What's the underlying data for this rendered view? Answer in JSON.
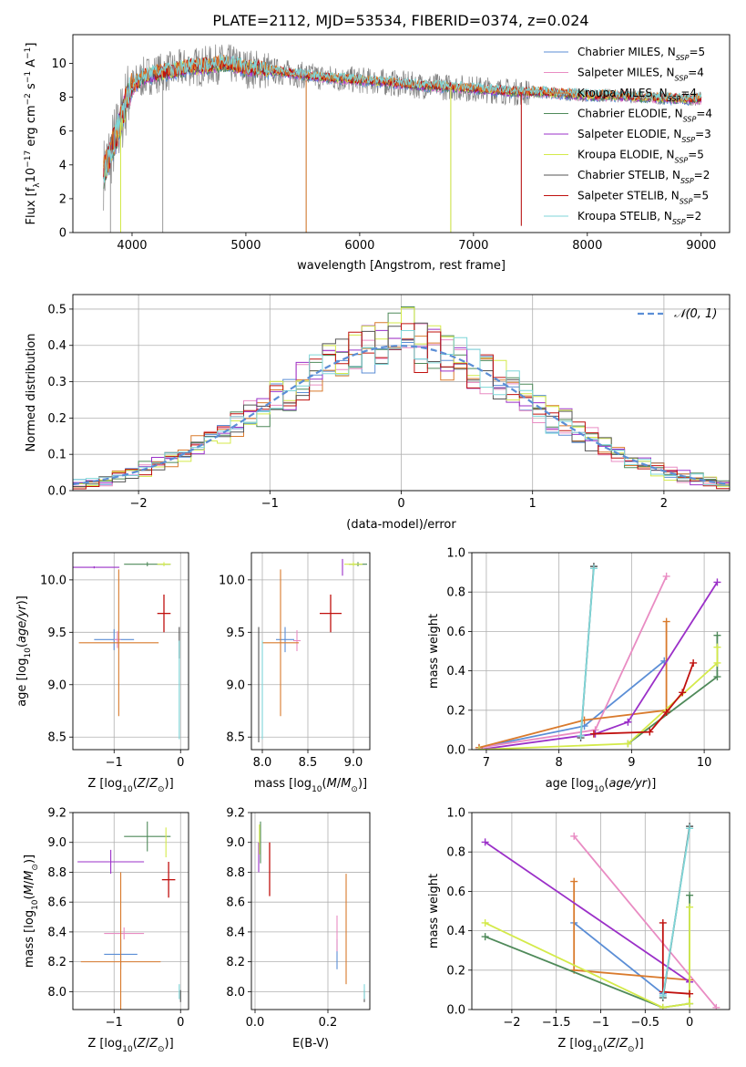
{
  "figure": {
    "title": "PLATE=2112, MJD=53534, FIBERID=0374, z=0.024"
  },
  "model_colors": {
    "Chabrier MILES": "#5b8ed6",
    "Salpeter MILES": "#e98cc3",
    "Kroupa MILES": "#d97a2c",
    "Chabrier ELODIE": "#4f8a5a",
    "Salpeter ELODIE": "#9b30c8",
    "Kroupa ELODIE": "#d4ea4a",
    "Chabrier STELIB": "#555555",
    "Salpeter STELIB": "#c0100e",
    "Kroupa STELIB": "#7fd6d8",
    "data": "#808080"
  },
  "chart_data": [
    {
      "id": "spectrum",
      "type": "line",
      "xlabel": "wavelength [Angstrom, rest frame]",
      "ylabel": "Flux [f_λ 10^-17 erg cm^-2 s^-1 A^-1]",
      "xlim": [
        3480,
        9250
      ],
      "ylim": [
        0,
        11.7
      ],
      "xticks": [
        4000,
        5000,
        6000,
        7000,
        8000,
        9000
      ],
      "yticks": [
        0,
        2,
        4,
        6,
        8,
        10
      ],
      "grid": false,
      "legend_position": "top-right",
      "legend": [
        {
          "name": "Chabrier MILES",
          "nssp": "5"
        },
        {
          "name": "Salpeter MILES",
          "nssp": "4"
        },
        {
          "name": "Kroupa MILES",
          "nssp": "4"
        },
        {
          "name": "Chabrier ELODIE",
          "nssp": "4"
        },
        {
          "name": "Salpeter ELODIE",
          "nssp": "3"
        },
        {
          "name": "Kroupa ELODIE",
          "nssp": "5"
        },
        {
          "name": "Chabrier STELIB",
          "nssp": "2"
        },
        {
          "name": "Salpeter STELIB",
          "nssp": "5"
        },
        {
          "name": "Kroupa STELIB",
          "nssp": "2"
        }
      ],
      "continuum": {
        "x": [
          3750,
          3800,
          3850,
          3900,
          3950,
          4000,
          4100,
          4200,
          4300,
          4400,
          4500,
          4600,
          4700,
          4800,
          4900,
          5000,
          5200,
          5500,
          5800,
          6000,
          6200,
          6500,
          6800,
          7000,
          7200,
          7400,
          7600,
          7800,
          8000,
          8200,
          8500,
          8800,
          9000
        ],
        "y": [
          3.5,
          4.5,
          5.5,
          6.5,
          7.8,
          8.6,
          9.2,
          9.4,
          9.5,
          9.6,
          9.8,
          9.8,
          9.9,
          10.0,
          9.9,
          9.7,
          9.6,
          9.3,
          9.1,
          9.0,
          8.9,
          8.7,
          8.6,
          8.5,
          8.4,
          8.3,
          8.3,
          8.2,
          8.1,
          8.1,
          8.0,
          7.9,
          7.9
        ]
      },
      "data_spikes": [
        {
          "x": 3810,
          "y": 0.0
        },
        {
          "x": 4270,
          "y": 0.0
        },
        {
          "x": 5530,
          "y": 0.0
        },
        {
          "x": 6800,
          "y": 0.0
        },
        {
          "x": 7420,
          "y": 0.4
        },
        {
          "x": 3900,
          "y": 0.0
        }
      ]
    },
    {
      "id": "residuals",
      "type": "histogram",
      "xlabel": "(data-model)/error",
      "ylabel": "Normed distribution",
      "xlim": [
        -2.5,
        2.5
      ],
      "ylim": [
        0,
        0.54
      ],
      "xticks": [
        -2,
        -1,
        0,
        1,
        2
      ],
      "yticks": [
        0.0,
        0.1,
        0.2,
        0.3,
        0.4,
        0.5
      ],
      "grid": true,
      "legend_position": "top-right",
      "legend": [
        "𝒩(0, 1)"
      ],
      "bin_width": 0.1
    },
    {
      "id": "age-vs-Z",
      "type": "errorbar",
      "xlabel": "Z [log10(Z/Z⊙)]",
      "ylabel": "age  [log10(age/yr)]",
      "xlim": [
        -1.62,
        0.12
      ],
      "ylim": [
        8.38,
        10.26
      ],
      "xticks": [
        -1,
        0
      ],
      "yticks": [
        8.5,
        9.0,
        9.5,
        10.0
      ],
      "grid": true,
      "points": [
        {
          "model": "Chabrier MILES",
          "x": -1.0,
          "xerr": 0.3,
          "y": 9.43,
          "yerr": 0.1
        },
        {
          "model": "Salpeter MILES",
          "x": -0.95,
          "xerr": 0.05,
          "y": 9.43,
          "yerr": 0.08
        },
        {
          "model": "Kroupa MILES",
          "x": -0.93,
          "xerr": 0.6,
          "y": 9.4,
          "yerr": 0.7
        },
        {
          "model": "Chabrier ELODIE",
          "x": -0.5,
          "xerr": 0.35,
          "y": 10.15,
          "yerr": 0.02
        },
        {
          "model": "Salpeter ELODIE",
          "x": -1.3,
          "xerr": 0.38,
          "y": 10.12,
          "yerr": 0.01
        },
        {
          "model": "Kroupa ELODIE",
          "x": -0.25,
          "xerr": 0.1,
          "y": 10.15,
          "yerr": 0.02
        },
        {
          "model": "Chabrier STELIB",
          "x": -0.02,
          "xerr": 0.0,
          "y": 9.4,
          "yerr": 0.15
        },
        {
          "model": "Salpeter STELIB",
          "x": -0.25,
          "xerr": 0.1,
          "y": 9.68,
          "yerr": 0.18
        },
        {
          "model": "Kroupa STELIB",
          "x": -0.02,
          "xerr": 0.0,
          "y": 8.95,
          "yerr": 0.47
        }
      ]
    },
    {
      "id": "age-vs-mass",
      "type": "errorbar",
      "xlabel": "mass [log10(M/M⊙)]",
      "ylabel": "",
      "xlim": [
        7.88,
        9.18
      ],
      "ylim": [
        8.38,
        10.26
      ],
      "xticks": [
        8.0,
        8.5,
        9.0
      ],
      "yticks": [
        8.5,
        9.0,
        9.5,
        10.0
      ],
      "grid": true,
      "points": [
        {
          "model": "Chabrier MILES",
          "x": 8.25,
          "xerr": 0.1,
          "y": 9.43,
          "yerr": 0.12
        },
        {
          "model": "Salpeter MILES",
          "x": 8.38,
          "xerr": 0.04,
          "y": 9.42,
          "yerr": 0.1
        },
        {
          "model": "Kroupa MILES",
          "x": 8.2,
          "xerr": 0.2,
          "y": 9.4,
          "yerr": 0.7
        },
        {
          "model": "Chabrier ELODIE",
          "x": 9.05,
          "xerr": 0.1,
          "y": 10.15,
          "yerr": 0.02
        },
        {
          "model": "Salpeter ELODIE",
          "x": 8.88,
          "xerr": 0.0,
          "y": 10.12,
          "yerr": 0.08
        },
        {
          "model": "Kroupa ELODIE",
          "x": 9.0,
          "xerr": 0.1,
          "y": 10.15,
          "yerr": 0.02
        },
        {
          "model": "Chabrier STELIB",
          "x": 7.96,
          "xerr": 0.0,
          "y": 9.0,
          "yerr": 0.55
        },
        {
          "model": "Salpeter STELIB",
          "x": 8.75,
          "xerr": 0.12,
          "y": 9.68,
          "yerr": 0.18
        },
        {
          "model": "Kroupa STELIB",
          "x": 8.0,
          "xerr": 0.0,
          "y": 8.95,
          "yerr": 0.47
        }
      ]
    },
    {
      "id": "massweight-vs-age",
      "type": "line",
      "xlabel": "age  [log10(age/yr)]",
      "ylabel": "mass weight",
      "xlim": [
        6.8,
        10.35
      ],
      "ylim": [
        0,
        1.0
      ],
      "xticks": [
        7,
        8,
        9,
        10
      ],
      "yticks": [
        0.0,
        0.2,
        0.4,
        0.6,
        0.8,
        1.0
      ],
      "grid": true,
      "series": [
        {
          "model": "Chabrier MILES",
          "x": [
            6.9,
            8.35,
            9.45
          ],
          "y": [
            0.01,
            0.12,
            0.45
          ]
        },
        {
          "model": "Salpeter MILES",
          "x": [
            6.9,
            8.5,
            9.48
          ],
          "y": [
            0.01,
            0.1,
            0.88
          ]
        },
        {
          "model": "Kroupa MILES",
          "x": [
            6.9,
            8.35,
            9.48,
            9.48
          ],
          "y": [
            0.01,
            0.15,
            0.2,
            0.65
          ]
        },
        {
          "model": "Chabrier ELODIE",
          "x": [
            8.95,
            10.18,
            10.18
          ],
          "y": [
            0.03,
            0.37,
            0.58
          ]
        },
        {
          "model": "Salpeter ELODIE",
          "x": [
            6.9,
            8.5,
            8.95,
            10.18
          ],
          "y": [
            0.0,
            0.08,
            0.14,
            0.85
          ]
        },
        {
          "model": "Kroupa ELODIE",
          "x": [
            6.9,
            8.95,
            10.18,
            10.18
          ],
          "y": [
            0.0,
            0.03,
            0.44,
            0.52
          ]
        },
        {
          "model": "Chabrier STELIB",
          "x": [
            8.3,
            8.48
          ],
          "y": [
            0.06,
            0.93
          ]
        },
        {
          "model": "Salpeter STELIB",
          "x": [
            8.48,
            9.25,
            9.48,
            9.7,
            9.85
          ],
          "y": [
            0.08,
            0.09,
            0.19,
            0.29,
            0.44
          ]
        },
        {
          "model": "Kroupa STELIB",
          "x": [
            8.3,
            8.48
          ],
          "y": [
            0.07,
            0.92
          ]
        }
      ]
    },
    {
      "id": "mass-vs-Z",
      "type": "errorbar",
      "xlabel": "Z [log10(Z/Z⊙)]",
      "ylabel": "mass [log10(M/M⊙)]",
      "xlim": [
        -1.62,
        0.12
      ],
      "ylim": [
        7.88,
        9.2
      ],
      "xticks": [
        -1,
        0
      ],
      "yticks": [
        8.0,
        8.2,
        8.4,
        8.6,
        8.8,
        9.0,
        9.2
      ],
      "grid": true,
      "points": [
        {
          "model": "Chabrier MILES",
          "x": -0.9,
          "xerr": 0.25,
          "y": 8.25,
          "yerr": 0.1
        },
        {
          "model": "Salpeter MILES",
          "x": -0.85,
          "xerr": 0.3,
          "y": 8.39,
          "yerr": 0.04
        },
        {
          "model": "Kroupa MILES",
          "x": -0.9,
          "xerr": 0.6,
          "y": 8.2,
          "yerr": 0.6
        },
        {
          "model": "Chabrier ELODIE",
          "x": -0.5,
          "xerr": 0.35,
          "y": 9.04,
          "yerr": 0.1
        },
        {
          "model": "Salpeter ELODIE",
          "x": -1.05,
          "xerr": 0.5,
          "y": 8.87,
          "yerr": 0.08
        },
        {
          "model": "Kroupa ELODIE",
          "x": -0.22,
          "xerr": 0.0,
          "y": 9.0,
          "yerr": 0.1
        },
        {
          "model": "Chabrier STELIB",
          "x": 0.0,
          "xerr": 0.0,
          "y": 7.97,
          "yerr": 0.04
        },
        {
          "model": "Salpeter STELIB",
          "x": -0.18,
          "xerr": 0.1,
          "y": 8.75,
          "yerr": 0.12
        },
        {
          "model": "Kroupa STELIB",
          "x": -0.02,
          "xerr": 0.0,
          "y": 8.0,
          "yerr": 0.05
        }
      ]
    },
    {
      "id": "mass-vs-EBV",
      "type": "errorbar",
      "xlabel": "E(B-V)",
      "ylabel": "",
      "xlim": [
        -0.01,
        0.315
      ],
      "ylim": [
        7.88,
        9.2
      ],
      "xticks": [
        0.0,
        0.2
      ],
      "yticks": [
        8.0,
        8.2,
        8.4,
        8.6,
        8.8,
        9.0,
        9.2
      ],
      "grid": true,
      "points": [
        {
          "model": "Chabrier MILES",
          "x": 0.225,
          "xerr": 0.0,
          "y": 8.25,
          "yerr": 0.1
        },
        {
          "model": "Salpeter MILES",
          "x": 0.225,
          "xerr": 0.0,
          "y": 8.39,
          "yerr": 0.12
        },
        {
          "model": "Kroupa MILES",
          "x": 0.25,
          "xerr": 0.0,
          "y": 8.42,
          "yerr": 0.37
        },
        {
          "model": "Chabrier ELODIE",
          "x": 0.015,
          "xerr": 0.0,
          "y": 9.0,
          "yerr": 0.14
        },
        {
          "model": "Salpeter ELODIE",
          "x": 0.01,
          "xerr": 0.0,
          "y": 8.9,
          "yerr": 0.1
        },
        {
          "model": "Kroupa ELODIE",
          "x": 0.012,
          "xerr": 0.0,
          "y": 9.02,
          "yerr": 0.1
        },
        {
          "model": "Chabrier STELIB",
          "x": 0.3,
          "xerr": 0.0,
          "y": 7.97,
          "yerr": 0.04
        },
        {
          "model": "Salpeter STELIB",
          "x": 0.04,
          "xerr": 0.0,
          "y": 8.82,
          "yerr": 0.18
        },
        {
          "model": "Kroupa STELIB",
          "x": 0.3,
          "xerr": 0.0,
          "y": 8.0,
          "yerr": 0.05
        }
      ]
    },
    {
      "id": "massweight-vs-Z",
      "type": "line",
      "xlabel": "Z [log10(Z/Z⊙)]",
      "ylabel": "mass weight",
      "xlim": [
        -2.45,
        0.45
      ],
      "ylim": [
        0,
        1.0
      ],
      "xticks": [
        -2.0,
        -1.5,
        -1.0,
        -0.5,
        0.0
      ],
      "yticks": [
        0.0,
        0.2,
        0.4,
        0.6,
        0.8,
        1.0
      ],
      "grid": true,
      "series": [
        {
          "model": "Chabrier MILES",
          "x": [
            -1.3,
            -0.3
          ],
          "y": [
            0.44,
            0.08
          ]
        },
        {
          "model": "Salpeter MILES",
          "x": [
            -1.3,
            0.3
          ],
          "y": [
            0.88,
            0.01
          ]
        },
        {
          "model": "Kroupa MILES",
          "x": [
            -1.3,
            -1.3,
            0.0
          ],
          "y": [
            0.65,
            0.2,
            0.15
          ]
        },
        {
          "model": "Chabrier ELODIE",
          "x": [
            -2.3,
            -0.3,
            0.0,
            0.0
          ],
          "y": [
            0.37,
            0.01,
            0.03,
            0.58
          ]
        },
        {
          "model": "Salpeter ELODIE",
          "x": [
            -2.3,
            0.0
          ],
          "y": [
            0.85,
            0.14
          ]
        },
        {
          "model": "Kroupa ELODIE",
          "x": [
            -2.3,
            -0.3,
            0.0,
            0.0
          ],
          "y": [
            0.44,
            0.01,
            0.03,
            0.52
          ]
        },
        {
          "model": "Chabrier STELIB",
          "x": [
            -0.3,
            0.0
          ],
          "y": [
            0.06,
            0.93
          ]
        },
        {
          "model": "Salpeter STELIB",
          "x": [
            -0.3,
            -0.3,
            0.0
          ],
          "y": [
            0.44,
            0.09,
            0.08
          ]
        },
        {
          "model": "Kroupa STELIB",
          "x": [
            -0.3,
            0.0
          ],
          "y": [
            0.07,
            0.92
          ]
        }
      ]
    }
  ]
}
